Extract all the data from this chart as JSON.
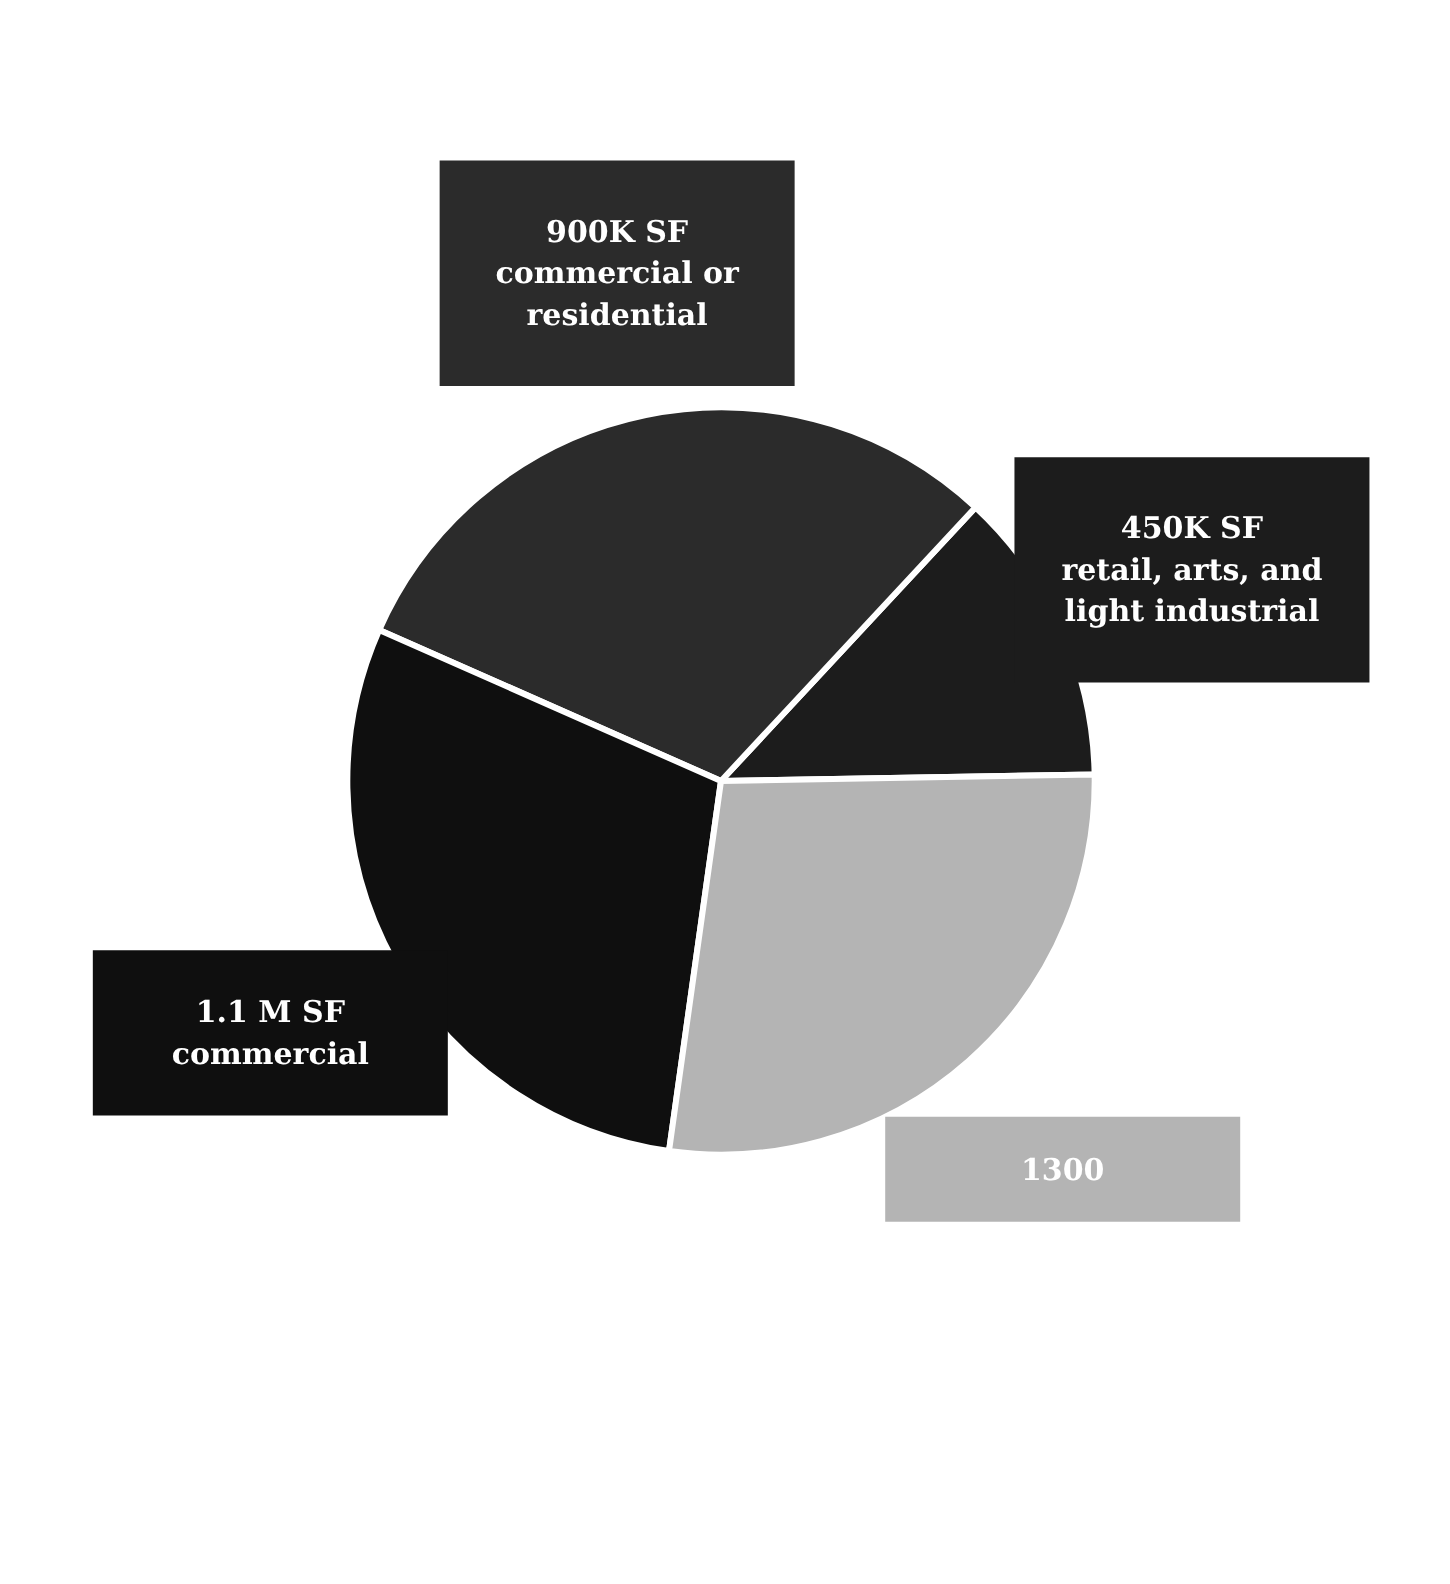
{
  "chart_data": {
    "type": "pie",
    "categories": [
      "450K SF\nretail, arts, and\nlight industrial",
      "900K SF\ncommercial or\nresidential",
      "1.1 M SF\ncommercial",
      "1300"
    ],
    "values": [
      12.8,
      30.3,
      29.4,
      27.5
    ],
    "colors": [
      "#1c1c1c",
      "#2b2b2b",
      "#0f0f0f",
      "#b4b4b4"
    ]
  }
}
